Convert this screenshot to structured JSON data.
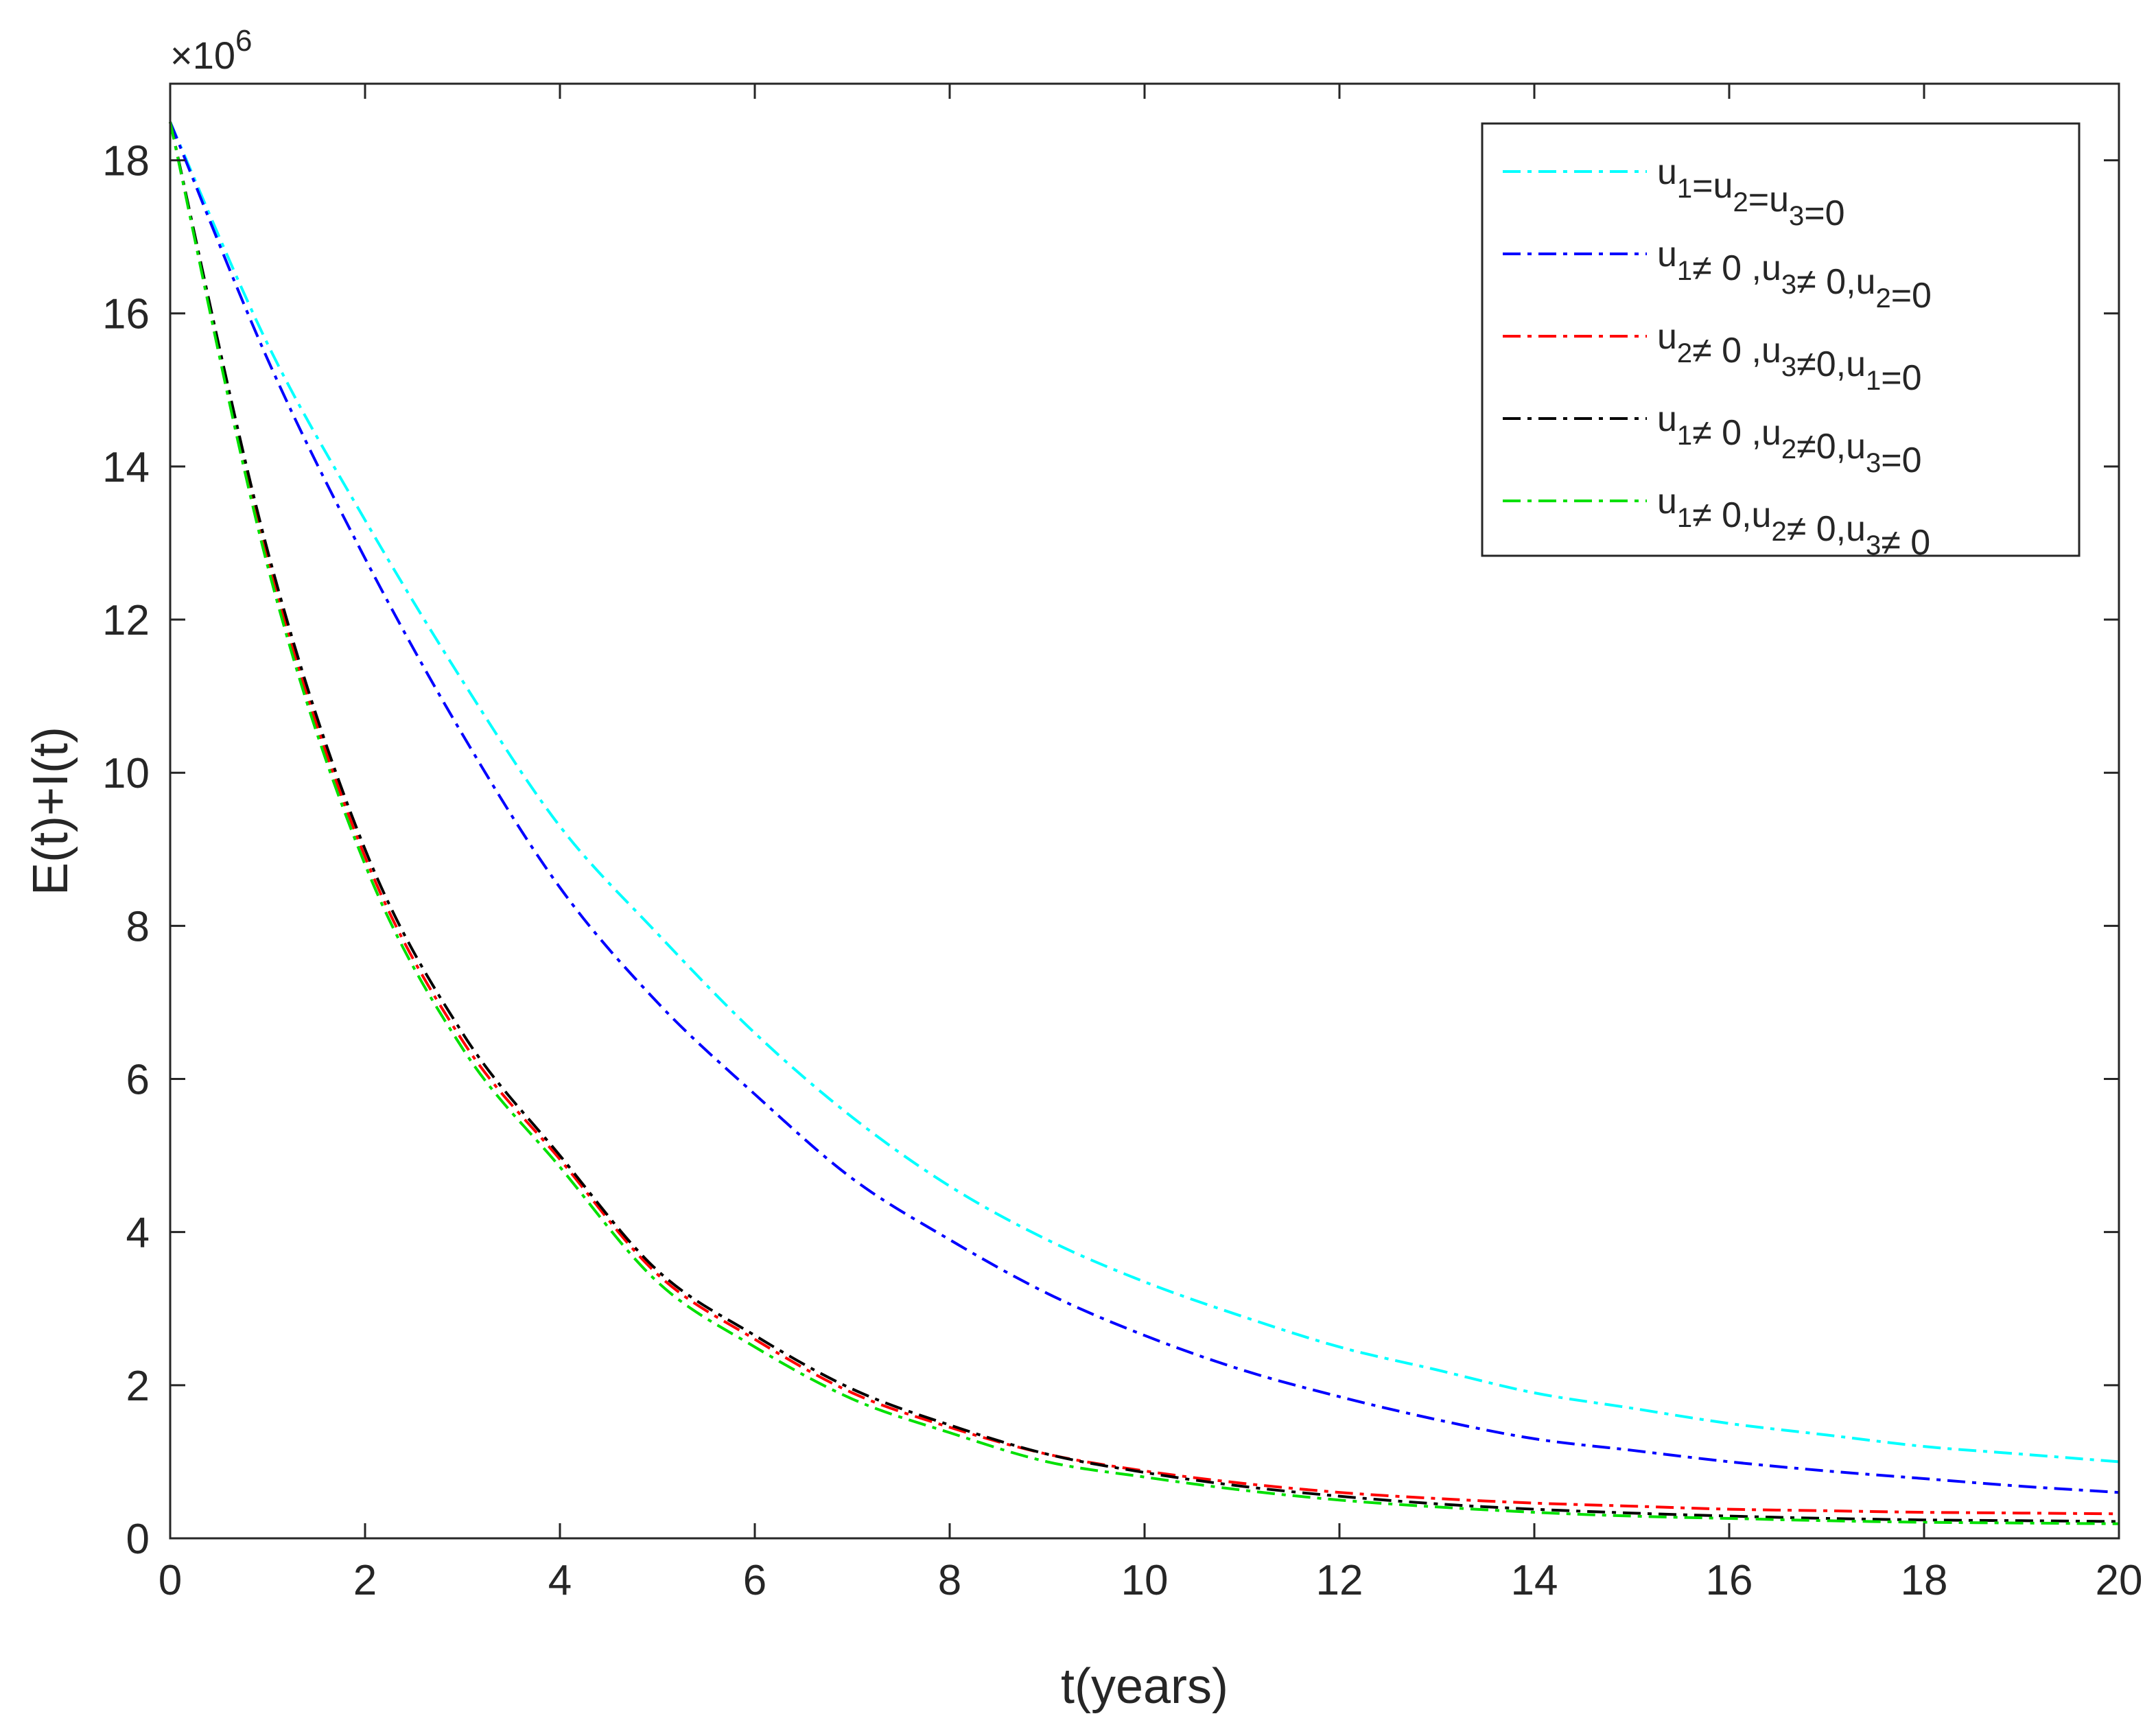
{
  "chart_data": {
    "type": "line",
    "xlabel": "t(years)",
    "ylabel": "E(t)+I(t)",
    "exponent_label": {
      "base": "×10",
      "power": "6"
    },
    "xlim": [
      0,
      20
    ],
    "ylim": [
      0,
      19
    ],
    "x_ticks": [
      0,
      2,
      4,
      6,
      8,
      10,
      12,
      14,
      16,
      18,
      20
    ],
    "y_ticks": [
      0,
      2,
      4,
      6,
      8,
      10,
      12,
      14,
      16,
      18
    ],
    "y_unit_multiplier": 1000000,
    "grid": false,
    "legend_position": "top-right",
    "x": [
      0,
      1,
      2,
      3,
      4,
      5,
      6,
      7,
      8,
      9,
      10,
      11,
      12,
      13,
      14,
      15,
      16,
      17,
      18,
      19,
      20
    ],
    "series": [
      {
        "legend": {
          "parts": [
            [
              "u",
              "1"
            ],
            [
              "=u",
              "2"
            ],
            [
              "=u",
              "3"
            ],
            [
              "=0",
              ""
            ]
          ]
        },
        "color": "#00ffff",
        "values": [
          18.5,
          15.6,
          13.3,
          11.2,
          9.3,
          7.9,
          6.6,
          5.5,
          4.6,
          3.9,
          3.35,
          2.9,
          2.5,
          2.2,
          1.9,
          1.7,
          1.5,
          1.35,
          1.2,
          1.1,
          1.0
        ]
      },
      {
        "legend": {
          "parts": [
            [
              "u",
              "1"
            ],
            [
              "≠ 0 ,u",
              "3"
            ],
            [
              "≠ 0,u",
              "2"
            ],
            [
              "=0",
              ""
            ]
          ]
        },
        "color": "#0000ff",
        "values": [
          18.5,
          15.4,
          12.8,
          10.5,
          8.5,
          7.0,
          5.8,
          4.7,
          3.9,
          3.2,
          2.65,
          2.2,
          1.85,
          1.55,
          1.3,
          1.15,
          1.0,
          0.88,
          0.78,
          0.68,
          0.6
        ]
      },
      {
        "legend": {
          "parts": [
            [
              "u",
              "2"
            ],
            [
              "≠ 0 ,u",
              "3"
            ],
            [
              "≠0,u",
              "1"
            ],
            [
              "=0",
              ""
            ]
          ]
        },
        "color": "#ff0000",
        "values": [
          18.5,
          12.8,
          8.9,
          6.5,
          4.95,
          3.45,
          2.6,
          1.9,
          1.45,
          1.1,
          0.88,
          0.72,
          0.6,
          0.52,
          0.46,
          0.42,
          0.38,
          0.36,
          0.34,
          0.33,
          0.32
        ]
      },
      {
        "legend": {
          "parts": [
            [
              "u",
              "1"
            ],
            [
              "≠ 0 ,u",
              "2"
            ],
            [
              "≠0,u",
              "3"
            ],
            [
              "=0",
              ""
            ]
          ]
        },
        "color": "#000000",
        "values": [
          18.5,
          12.9,
          9.0,
          6.6,
          5.0,
          3.5,
          2.65,
          1.95,
          1.48,
          1.1,
          0.86,
          0.68,
          0.55,
          0.45,
          0.38,
          0.33,
          0.29,
          0.26,
          0.24,
          0.23,
          0.22
        ]
      },
      {
        "legend": {
          "parts": [
            [
              "u",
              "1"
            ],
            [
              "≠ 0,u",
              "2"
            ],
            [
              "≠ 0,u",
              "3"
            ],
            [
              "≠ 0",
              ""
            ]
          ]
        },
        "color": "#00e000",
        "values": [
          18.5,
          12.7,
          8.8,
          6.4,
          4.85,
          3.35,
          2.5,
          1.82,
          1.38,
          1.0,
          0.8,
          0.63,
          0.5,
          0.41,
          0.34,
          0.29,
          0.26,
          0.23,
          0.21,
          0.2,
          0.19
        ]
      }
    ]
  }
}
